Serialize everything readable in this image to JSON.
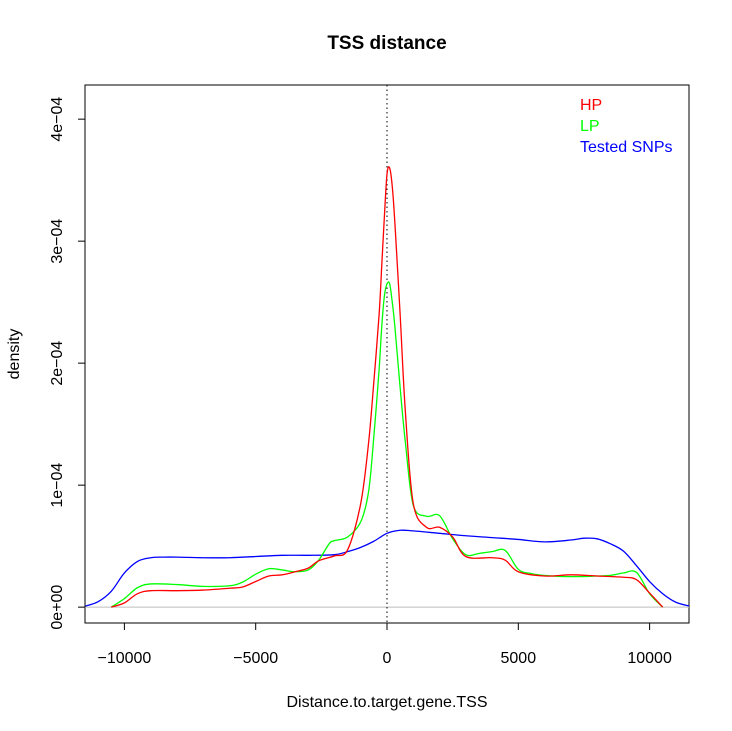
{
  "chart_data": {
    "type": "line",
    "title": "TSS distance",
    "xlabel": "Distance.to.target.gene.TSS",
    "ylabel": "density",
    "xlim": [
      -11500,
      11500
    ],
    "ylim": [
      -1.3e-05,
      0.000428
    ],
    "x_ticks": [
      -10000,
      -5000,
      0,
      5000,
      10000
    ],
    "x_tick_labels": [
      "−10000",
      "−5000",
      "0",
      "5000",
      "10000"
    ],
    "y_ticks": [
      0,
      0.0001,
      0.0002,
      0.0003,
      0.0004
    ],
    "y_tick_labels": [
      "0e+00",
      "1e−04",
      "2e−04",
      "3e−04",
      "4e−04"
    ],
    "vline_x": 0,
    "baseline_y": 0,
    "legend_position": "top-right",
    "series": [
      {
        "name": "HP",
        "color": "#ff0000",
        "x": [
          -10500,
          -10000,
          -9500,
          -9000,
          -8000,
          -7000,
          -6000,
          -5500,
          -5000,
          -4500,
          -4000,
          -3500,
          -3000,
          -2600,
          -2000,
          -1500,
          -1000,
          -700,
          -500,
          -300,
          -200,
          -100,
          0,
          100,
          200,
          300,
          500,
          700,
          1000,
          1500,
          2000,
          2500,
          3000,
          4000,
          4500,
          5000,
          6000,
          7000,
          8000,
          9000,
          9500,
          10000,
          10500
        ],
        "y": [
          0,
          3.5e-06,
          1.1e-05,
          1.35e-05,
          1.35e-05,
          1.4e-05,
          1.55e-05,
          1.65e-05,
          2.1e-05,
          2.55e-05,
          2.65e-05,
          2.9e-05,
          3.2e-05,
          3.8e-05,
          4.2e-05,
          4.7e-05,
          8.5e-05,
          0.000135,
          0.000185,
          0.00024,
          0.00028,
          0.00032,
          0.000355,
          0.00036,
          0.000345,
          0.000315,
          0.00024,
          0.00016,
          8.5e-05,
          6.55e-05,
          6.55e-05,
          5.75e-05,
          4.15e-05,
          4.05e-05,
          3.85e-05,
          2.9e-05,
          2.55e-05,
          2.65e-05,
          2.55e-05,
          2.45e-05,
          2.25e-05,
          1.15e-05,
          0
        ]
      },
      {
        "name": "LP",
        "color": "#00ff00",
        "x": [
          -10500,
          -10000,
          -9500,
          -9000,
          -8000,
          -7000,
          -6000,
          -5500,
          -5000,
          -4500,
          -4000,
          -3500,
          -3000,
          -2600,
          -2200,
          -2000,
          -1500,
          -1000,
          -700,
          -500,
          -300,
          -200,
          -100,
          0,
          100,
          200,
          300,
          500,
          700,
          1000,
          1500,
          2000,
          2500,
          3000,
          3500,
          4000,
          4500,
          5000,
          5500,
          6000,
          7000,
          8000,
          8500,
          9000,
          9500,
          10000,
          10500
        ],
        "y": [
          0,
          7e-06,
          1.6e-05,
          1.9e-05,
          1.85e-05,
          1.7e-05,
          1.75e-05,
          2.05e-05,
          2.7e-05,
          3.15e-05,
          3.05e-05,
          2.9e-05,
          3.05e-05,
          3.85e-05,
          5.2e-05,
          5.45e-05,
          5.75e-05,
          7e-05,
          9.5e-05,
          0.00014,
          0.000195,
          0.00023,
          0.000255,
          0.000265,
          0.000265,
          0.00025,
          0.00023,
          0.00018,
          0.000135,
          8.35e-05,
          7.45e-05,
          7.5e-05,
          5.6e-05,
          4.3e-05,
          4.4e-05,
          4.55e-05,
          4.65e-05,
          3.1e-05,
          2.75e-05,
          2.6e-05,
          2.5e-05,
          2.55e-05,
          2.6e-05,
          2.8e-05,
          2.85e-05,
          1.1e-05,
          0
        ]
      },
      {
        "name": "Tested SNPs",
        "color": "#0000ff",
        "x": [
          -11500,
          -11000,
          -10500,
          -10000,
          -9500,
          -9000,
          -8500,
          -8000,
          -7000,
          -6000,
          -5000,
          -4000,
          -3000,
          -2000,
          -1500,
          -1000,
          -500,
          0,
          500,
          1000,
          2000,
          3000,
          4000,
          5000,
          6000,
          7000,
          7500,
          8000,
          8500,
          9000,
          9500,
          10000,
          10500,
          11000,
          11500
        ],
        "y": [
          8e-07,
          4.5e-06,
          1.3e-05,
          2.8e-05,
          3.75e-05,
          4.05e-05,
          4.1e-05,
          4.1e-05,
          4.05e-05,
          4.05e-05,
          4.15e-05,
          4.25e-05,
          4.25e-05,
          4.3e-05,
          4.55e-05,
          4.9e-05,
          5.4e-05,
          6.05e-05,
          6.3e-05,
          6.25e-05,
          6.05e-05,
          5.85e-05,
          5.7e-05,
          5.55e-05,
          5.35e-05,
          5.5e-05,
          5.65e-05,
          5.6e-05,
          5.2e-05,
          4.6e-05,
          3.4e-05,
          2.1e-05,
          1.1e-05,
          4e-06,
          1e-06
        ]
      }
    ]
  }
}
